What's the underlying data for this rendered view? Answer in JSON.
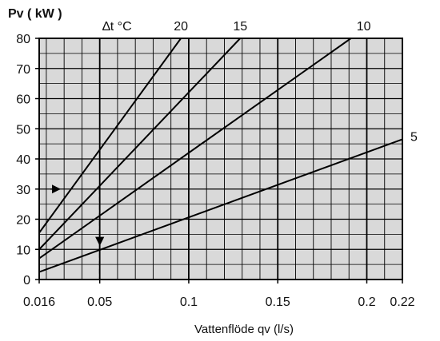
{
  "chart_data": {
    "type": "line",
    "ylabel": "Pv ( kW )",
    "xlabel": "Vattenflöde qv (l/s)",
    "legend_title": "∆t °C",
    "xlim": [
      0.016,
      0.22
    ],
    "ylim": [
      0,
      80
    ],
    "x_ticks": [
      0.016,
      0.05,
      0.1,
      0.15,
      0.2,
      0.22
    ],
    "x_tick_labels": [
      "0.016",
      "0.05",
      "0.1",
      "0.15",
      "0.2",
      "0.22"
    ],
    "y_ticks": [
      0,
      10,
      20,
      30,
      40,
      50,
      60,
      70,
      80
    ],
    "y_tick_labels": [
      "0",
      "10",
      "20",
      "30",
      "40",
      "50",
      "60",
      "70",
      "80"
    ],
    "grid": true,
    "series": [
      {
        "name": "20",
        "x": [
          0.016,
          0.0956
        ],
        "y": [
          15.5,
          80
        ]
      },
      {
        "name": "15",
        "x": [
          0.016,
          0.1289
        ],
        "y": [
          10,
          80
        ]
      },
      {
        "name": "10",
        "x": [
          0.016,
          0.1911
        ],
        "y": [
          7,
          80
        ]
      },
      {
        "name": "5",
        "x": [
          0.016,
          0.22
        ],
        "y": [
          2.5,
          46.5
        ]
      }
    ],
    "example": {
      "power": 30,
      "flow": 0.05
    }
  }
}
